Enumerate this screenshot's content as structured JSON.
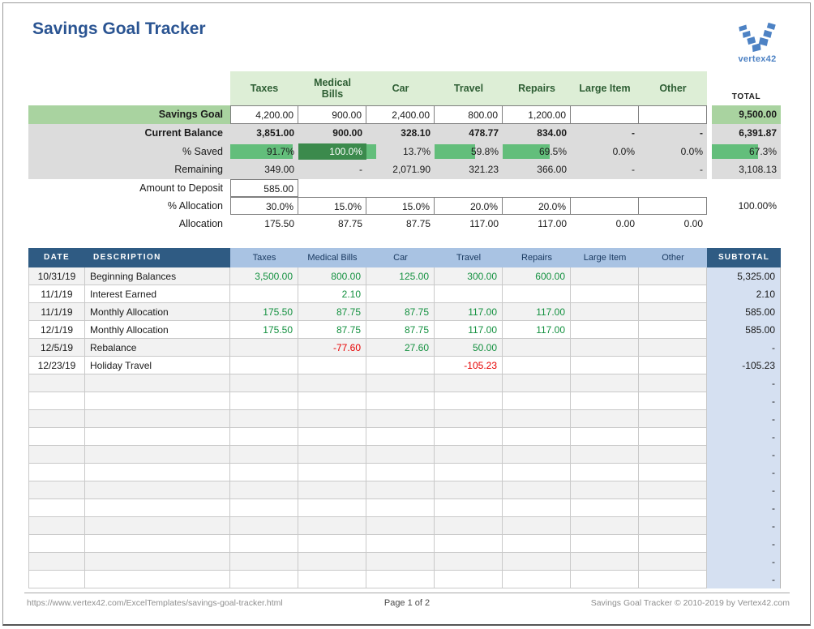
{
  "header": {
    "title": "Savings Goal Tracker",
    "logo_text": "vertex42"
  },
  "colors": {
    "title_blue": "#2a5492",
    "logo_blue": "#4d82c4",
    "hdr_green_bg": "#ddeed6",
    "hdr_green_text": "#2e5e34",
    "goal_green": "#a9d3a0",
    "row_gray": "#dcdcdc",
    "bar_green": "#63be7b",
    "bar_dark_green": "#3b8a4c",
    "ledger_dark": "#2f5b83",
    "ledger_light": "#a9c3e3",
    "ledger_light_text": "#17375e",
    "subtotal_blue": "#d5e0f1",
    "stripe_gray": "#f2f2f2",
    "green_text": "#149140",
    "red_text": "#e60000",
    "footer_gray": "#8f8f8f"
  },
  "summary": {
    "columns": [
      "Taxes",
      "Medical Bills",
      "Car",
      "Travel",
      "Repairs",
      "Large Item",
      "Other"
    ],
    "total_label": "TOTAL",
    "rows": {
      "savings_goal": {
        "label": "Savings Goal",
        "values": [
          "4,200.00",
          "900.00",
          "2,400.00",
          "800.00",
          "1,200.00",
          "",
          ""
        ],
        "total": "9,500.00"
      },
      "current_balance": {
        "label": "Current Balance",
        "values": [
          "3,851.00",
          "900.00",
          "328.10",
          "478.77",
          "834.00",
          "-",
          "-"
        ],
        "total": "6,391.87"
      },
      "pct_saved": {
        "label": "% Saved",
        "values": [
          "91.7%",
          "100.0%",
          "13.7%",
          "59.8%",
          "69.5%",
          "0.0%",
          "0.0%"
        ],
        "bars": [
          91.7,
          100,
          13.7,
          59.8,
          69.5,
          0,
          0
        ],
        "total": "67.3%",
        "total_bar": 67.3
      },
      "remaining": {
        "label": "Remaining",
        "values": [
          "349.00",
          "-",
          "2,071.90",
          "321.23",
          "366.00",
          "-",
          "-"
        ],
        "total": "3,108.13"
      },
      "amount_to_deposit": {
        "label": "Amount to Deposit",
        "value": "585.00"
      },
      "pct_allocation": {
        "label": "% Allocation",
        "values": [
          "30.0%",
          "15.0%",
          "15.0%",
          "20.0%",
          "20.0%",
          "",
          ""
        ],
        "total": "100.00%"
      },
      "allocation": {
        "label": "Allocation",
        "values": [
          "175.50",
          "87.75",
          "87.75",
          "117.00",
          "117.00",
          "0.00",
          "0.00"
        ],
        "total": ""
      }
    }
  },
  "ledger": {
    "date_header": "DATE",
    "description_header": "DESCRIPTION",
    "subtotal_header": "SUBTOTAL",
    "columns": [
      "Taxes",
      "Medical Bills",
      "Car",
      "Travel",
      "Repairs",
      "Large Item",
      "Other"
    ],
    "rows": [
      {
        "date": "10/31/19",
        "description": "Beginning Balances",
        "values": [
          "3,500.00",
          "800.00",
          "125.00",
          "300.00",
          "600.00",
          "",
          ""
        ],
        "subtotal": "5,325.00"
      },
      {
        "date": "11/1/19",
        "description": "Interest Earned",
        "values": [
          "",
          "2.10",
          "",
          "",
          "",
          "",
          ""
        ],
        "subtotal": "2.10"
      },
      {
        "date": "11/1/19",
        "description": "Monthly Allocation",
        "values": [
          "175.50",
          "87.75",
          "87.75",
          "117.00",
          "117.00",
          "",
          ""
        ],
        "subtotal": "585.00"
      },
      {
        "date": "12/1/19",
        "description": "Monthly Allocation",
        "values": [
          "175.50",
          "87.75",
          "87.75",
          "117.00",
          "117.00",
          "",
          ""
        ],
        "subtotal": "585.00"
      },
      {
        "date": "12/5/19",
        "description": "Rebalance",
        "values": [
          "",
          "-77.60",
          "27.60",
          "50.00",
          "",
          "",
          ""
        ],
        "subtotal": "-"
      },
      {
        "date": "12/23/19",
        "description": "Holiday Travel",
        "values": [
          "",
          "",
          "",
          "-105.23",
          "",
          "",
          ""
        ],
        "subtotal": "-105.23"
      },
      {
        "date": "",
        "description": "",
        "values": [
          "",
          "",
          "",
          "",
          "",
          "",
          ""
        ],
        "subtotal": "-"
      },
      {
        "date": "",
        "description": "",
        "values": [
          "",
          "",
          "",
          "",
          "",
          "",
          ""
        ],
        "subtotal": "-"
      },
      {
        "date": "",
        "description": "",
        "values": [
          "",
          "",
          "",
          "",
          "",
          "",
          ""
        ],
        "subtotal": "-"
      },
      {
        "date": "",
        "description": "",
        "values": [
          "",
          "",
          "",
          "",
          "",
          "",
          ""
        ],
        "subtotal": "-"
      },
      {
        "date": "",
        "description": "",
        "values": [
          "",
          "",
          "",
          "",
          "",
          "",
          ""
        ],
        "subtotal": "-"
      },
      {
        "date": "",
        "description": "",
        "values": [
          "",
          "",
          "",
          "",
          "",
          "",
          ""
        ],
        "subtotal": "-"
      },
      {
        "date": "",
        "description": "",
        "values": [
          "",
          "",
          "",
          "",
          "",
          "",
          ""
        ],
        "subtotal": "-"
      },
      {
        "date": "",
        "description": "",
        "values": [
          "",
          "",
          "",
          "",
          "",
          "",
          ""
        ],
        "subtotal": "-"
      },
      {
        "date": "",
        "description": "",
        "values": [
          "",
          "",
          "",
          "",
          "",
          "",
          ""
        ],
        "subtotal": "-"
      },
      {
        "date": "",
        "description": "",
        "values": [
          "",
          "",
          "",
          "",
          "",
          "",
          ""
        ],
        "subtotal": "-"
      },
      {
        "date": "",
        "description": "",
        "values": [
          "",
          "",
          "",
          "",
          "",
          "",
          ""
        ],
        "subtotal": "-"
      },
      {
        "date": "",
        "description": "",
        "values": [
          "",
          "",
          "",
          "",
          "",
          "",
          ""
        ],
        "subtotal": "-"
      }
    ]
  },
  "footer": {
    "url": "https://www.vertex42.com/ExcelTemplates/savings-goal-tracker.html",
    "page": "Page 1 of 2",
    "copyright": "Savings Goal Tracker © 2010-2019 by Vertex42.com"
  }
}
